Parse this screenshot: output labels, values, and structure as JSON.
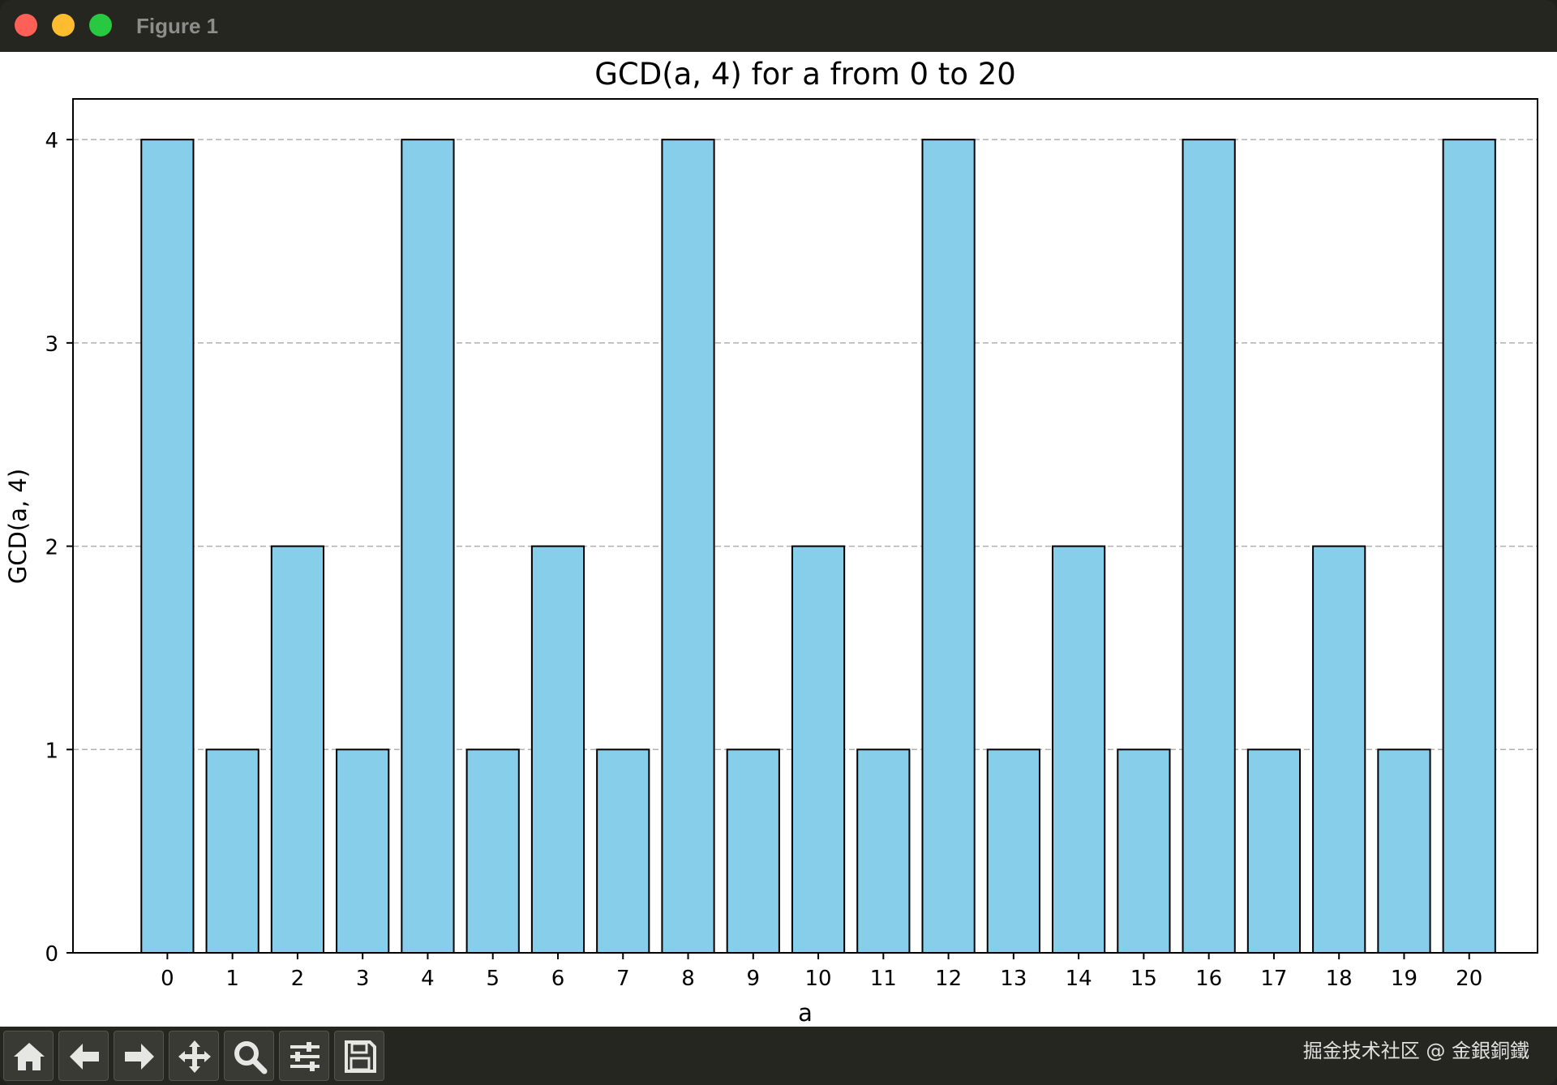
{
  "window": {
    "title": "Figure 1"
  },
  "toolbar": {
    "buttons": [
      {
        "name": "home-button",
        "icon": "home-icon"
      },
      {
        "name": "back-button",
        "icon": "arrow-left-icon"
      },
      {
        "name": "forward-button",
        "icon": "arrow-right-icon"
      },
      {
        "name": "pan-button",
        "icon": "move-icon"
      },
      {
        "name": "zoom-button",
        "icon": "magnifier-icon"
      },
      {
        "name": "configure-subplots-button",
        "icon": "sliders-icon"
      },
      {
        "name": "save-button",
        "icon": "floppy-disk-icon"
      }
    ]
  },
  "watermark": "掘金技术社区 @ 金銀銅鐵",
  "colors": {
    "bar_fill": "#87ceeb",
    "bar_edge": "#000000",
    "grid": "#b0b0b0"
  },
  "chart_data": {
    "type": "bar",
    "title": "GCD(a, 4) for a from 0 to 20",
    "xlabel": "a",
    "ylabel": "GCD(a, 4)",
    "categories": [
      "0",
      "1",
      "2",
      "3",
      "4",
      "5",
      "6",
      "7",
      "8",
      "9",
      "10",
      "11",
      "12",
      "13",
      "14",
      "15",
      "16",
      "17",
      "18",
      "19",
      "20"
    ],
    "values": [
      4,
      1,
      2,
      1,
      4,
      1,
      2,
      1,
      4,
      1,
      2,
      1,
      4,
      1,
      2,
      1,
      4,
      1,
      2,
      1,
      4
    ],
    "yticks": [
      "0",
      "1",
      "2",
      "3",
      "4"
    ],
    "ylim": [
      0,
      4.2
    ],
    "grid": "y-dashed"
  }
}
